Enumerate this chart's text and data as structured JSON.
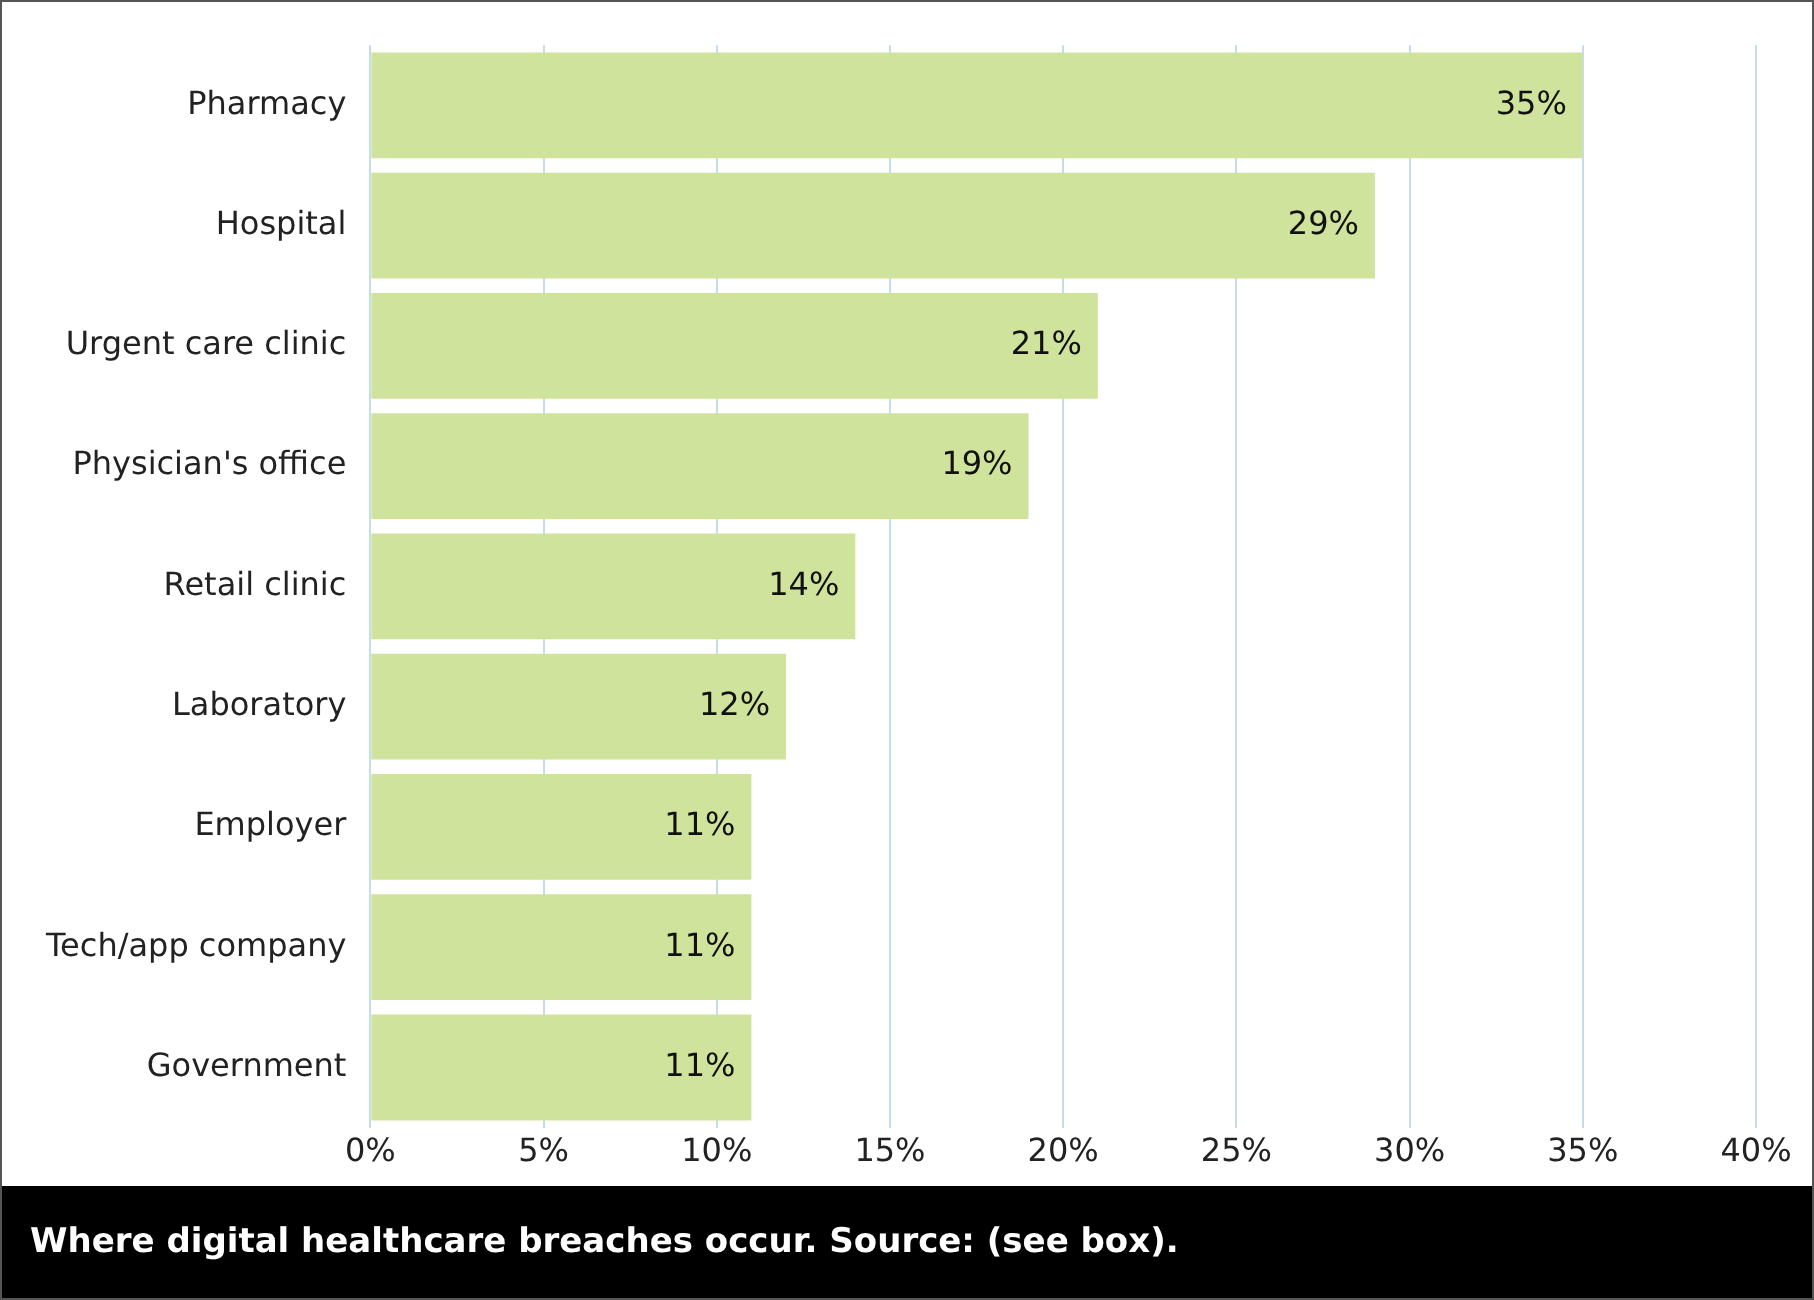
{
  "chart_data": {
    "type": "bar",
    "orientation": "horizontal",
    "categories": [
      "Pharmacy",
      "Hospital",
      "Urgent care clinic",
      "Physician's office",
      "Retail clinic",
      "Laboratory",
      "Employer",
      "Tech/app company",
      "Government"
    ],
    "values": [
      35,
      29,
      21,
      19,
      14,
      12,
      11,
      11,
      11
    ],
    "value_labels": [
      "35%",
      "29%",
      "21%",
      "19%",
      "14%",
      "12%",
      "11%",
      "11%",
      "11%"
    ],
    "color": "#cfe39c",
    "xlim": [
      0,
      40
    ],
    "xticks": [
      {
        "value": 0,
        "label": "0%"
      },
      {
        "value": 5,
        "label": "5%"
      },
      {
        "value": 10,
        "label": "10%"
      },
      {
        "value": 15,
        "label": "15%"
      },
      {
        "value": 20,
        "label": "20%"
      },
      {
        "value": 25,
        "label": "25%"
      },
      {
        "value": 30,
        "label": "30%"
      },
      {
        "value": 35,
        "label": "35%"
      },
      {
        "value": 40,
        "label": "40%"
      }
    ],
    "grid": "x",
    "legend": false,
    "annotations": [
      "Where digital healthcare breaches occur. Source: (see box)."
    ]
  }
}
